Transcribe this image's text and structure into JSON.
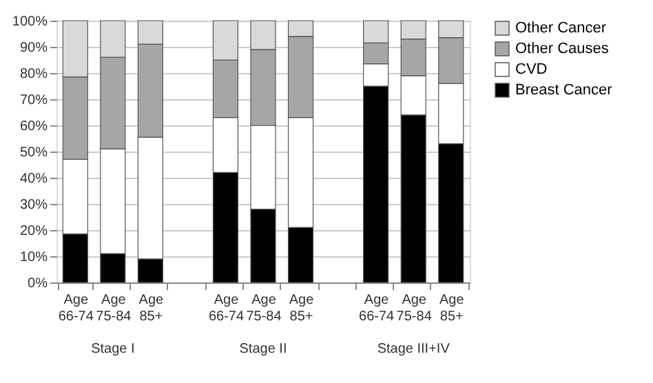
{
  "chart_data": {
    "type": "bar",
    "stacked": true,
    "categories": [
      "Age 66-74",
      "Age 75-84",
      "Age 85+",
      null,
      "Age 66-74",
      "Age 75-84",
      "Age 85+",
      null,
      "Age 66-74",
      "Age 75-84",
      "Age 85+"
    ],
    "series": [
      {
        "name": "Breast Cancer",
        "color": "#000000",
        "values": [
          18.5,
          11,
          9,
          null,
          42,
          28,
          21,
          null,
          75,
          64,
          53
        ]
      },
      {
        "name": "CVD",
        "color": "#ffffff",
        "values": [
          28.5,
          40,
          46.5,
          null,
          21,
          32,
          42,
          null,
          8.5,
          15,
          23
        ]
      },
      {
        "name": "Other Causes",
        "color": "#a6a6a6",
        "values": [
          31.5,
          35,
          35.5,
          null,
          22,
          29,
          31,
          null,
          8,
          14,
          17.5
        ]
      },
      {
        "name": "Other Cancer",
        "color": "#d9d9d9",
        "values": [
          21.5,
          14,
          9,
          null,
          15,
          11,
          6,
          null,
          8.5,
          7,
          6.5
        ]
      }
    ],
    "annotations": [
      "Stage I",
      "Stage II",
      "Stage III+IV"
    ],
    "ylim": [
      0,
      100
    ],
    "yticks": [
      {
        "value": 0,
        "label": "0%"
      },
      {
        "value": 10,
        "label": "10%"
      },
      {
        "value": 20,
        "label": "20%"
      },
      {
        "value": 30,
        "label": "30%"
      },
      {
        "value": 40,
        "label": "40%"
      },
      {
        "value": 50,
        "label": "50%"
      },
      {
        "value": 60,
        "label": "60%"
      },
      {
        "value": 70,
        "label": "70%"
      },
      {
        "value": 80,
        "label": "80%"
      },
      {
        "value": 90,
        "label": "90%"
      },
      {
        "value": 100,
        "label": "100%"
      }
    ],
    "grid": "y",
    "legend": "right"
  }
}
